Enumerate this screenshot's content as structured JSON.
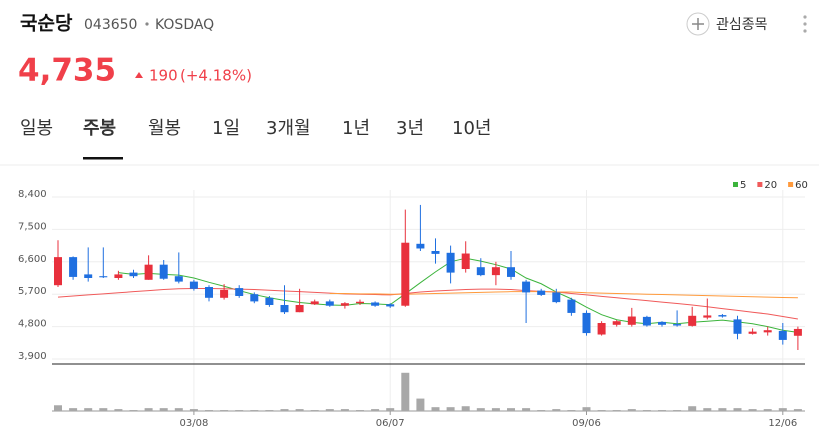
{
  "header": {
    "name": "국순당",
    "code": "043650",
    "market": "KOSDAQ",
    "watch_label": "관심종목",
    "price": "4,735",
    "change": "190",
    "change_pct": "(+4.18%)"
  },
  "tabs": [
    "일봉",
    "주봉",
    "월봉",
    "1일",
    "3개월",
    "1년",
    "3년",
    "10년"
  ],
  "selected_tab": 1,
  "chart_data": {
    "type": "candlestick",
    "categories": [
      null,
      null,
      null,
      null,
      null,
      null,
      null,
      null,
      null,
      "03/08",
      null,
      null,
      null,
      null,
      null,
      null,
      null,
      null,
      null,
      null,
      null,
      null,
      "06/07",
      null,
      null,
      null,
      null,
      null,
      null,
      null,
      null,
      null,
      null,
      null,
      null,
      "09/06",
      null,
      null,
      null,
      null,
      null,
      null,
      null,
      null,
      null,
      null,
      null,
      null,
      "12/06",
      null
    ],
    "open": [
      5950,
      6730,
      6250,
      6200,
      6150,
      6300,
      6100,
      6520,
      6200,
      6050,
      5900,
      5600,
      5870,
      5700,
      5600,
      5400,
      5200,
      5420,
      5500,
      5380,
      5450,
      5470,
      5420,
      5380,
      7100,
      6900,
      6850,
      6400,
      6450,
      6230,
      6450,
      6050,
      5800,
      5750,
      5550,
      5180,
      4580,
      4850,
      4850,
      5070,
      4930,
      4870,
      4820,
      5050,
      5120,
      5000,
      4600,
      4640,
      4680,
      4545
    ],
    "high": [
      7200,
      6750,
      7000,
      7000,
      6350,
      6380,
      6780,
      6650,
      6860,
      6100,
      5950,
      5980,
      5950,
      5750,
      5650,
      5950,
      5850,
      5550,
      5550,
      5480,
      5550,
      5500,
      5450,
      8050,
      8180,
      7250,
      7050,
      7170,
      6700,
      6600,
      6900,
      6100,
      5850,
      5850,
      5600,
      5250,
      4950,
      4980,
      5320,
      5100,
      4950,
      5250,
      5350,
      5580,
      5150,
      5100,
      4750,
      4800,
      4900,
      4800
    ],
    "low": [
      5900,
      6100,
      6050,
      6150,
      6100,
      6150,
      6100,
      6100,
      6000,
      5800,
      5500,
      5550,
      5600,
      5450,
      5350,
      5150,
      5200,
      5400,
      5350,
      5300,
      5400,
      5350,
      5320,
      5350,
      6900,
      6550,
      6000,
      6300,
      6200,
      5950,
      6100,
      4900,
      5650,
      5450,
      5100,
      4550,
      4550,
      4800,
      4800,
      4800,
      4800,
      4800,
      4800,
      5000,
      5050,
      4450,
      4580,
      4550,
      4300,
      4150
    ],
    "close": [
      6730,
      6180,
      6150,
      6170,
      6250,
      6200,
      6520,
      6130,
      6050,
      5850,
      5600,
      5820,
      5650,
      5500,
      5400,
      5200,
      5400,
      5500,
      5380,
      5450,
      5490,
      5380,
      5360,
      7130,
      6970,
      6820,
      6300,
      6830,
      6230,
      6450,
      6180,
      5750,
      5680,
      5480,
      5180,
      4620,
      4900,
      4950,
      5080,
      4830,
      4850,
      4830,
      5100,
      5110,
      5080,
      4600,
      4660,
      4700,
      4430,
      4735
    ],
    "up_color": "#e8303c",
    "down_color": "#1f6fe0",
    "moving_averages": [
      {
        "name": "5",
        "color": "#3cb43c",
        "values": [
          null,
          null,
          null,
          null,
          6300,
          6250,
          6280,
          6250,
          6230,
          6150,
          6030,
          5920,
          5800,
          5690,
          5600,
          5530,
          5470,
          5430,
          5400,
          5390,
          5440,
          5430,
          5410,
          5710,
          6020,
          6320,
          6600,
          6700,
          6620,
          6520,
          6400,
          6150,
          5990,
          5760,
          5570,
          5340,
          5130,
          4990,
          4920,
          4880,
          4920,
          4880,
          4920,
          4950,
          4980,
          4930,
          4880,
          4800,
          4700,
          4640
        ]
      },
      {
        "name": "20",
        "color": "#f05a5a",
        "values": [
          5620,
          5650,
          5680,
          5710,
          5740,
          5770,
          5800,
          5830,
          5850,
          5860,
          5860,
          5850,
          5840,
          5830,
          5810,
          5790,
          5770,
          5750,
          5730,
          5710,
          5700,
          5690,
          5680,
          5720,
          5760,
          5790,
          5810,
          5830,
          5840,
          5840,
          5830,
          5800,
          5780,
          5760,
          5720,
          5680,
          5640,
          5600,
          5560,
          5520,
          5480,
          5440,
          5400,
          5350,
          5300,
          5250,
          5200,
          5150,
          5080,
          5010
        ]
      },
      {
        "name": "60",
        "color": "#ff9a3c",
        "values": [
          null,
          null,
          null,
          null,
          null,
          null,
          null,
          null,
          null,
          null,
          null,
          null,
          null,
          null,
          null,
          null,
          null,
          null,
          5720,
          5720,
          5710,
          5710,
          5700,
          5700,
          5710,
          5720,
          5730,
          5740,
          5750,
          5760,
          5770,
          5770,
          5770,
          5760,
          5760,
          5740,
          5730,
          5720,
          5710,
          5700,
          5690,
          5680,
          5670,
          5660,
          5650,
          5640,
          5630,
          5620,
          5610,
          5600
        ]
      }
    ],
    "volume": [
      6,
      3,
      3,
      3,
      2,
      1,
      3,
      3,
      3,
      2,
      1,
      1,
      1,
      1,
      1,
      2,
      2,
      1,
      2,
      2,
      1,
      2,
      3,
      40,
      13,
      4,
      4,
      5,
      3,
      3,
      3,
      3,
      1,
      2,
      1,
      4,
      1,
      1,
      2,
      1,
      1,
      1,
      5,
      3,
      3,
      3,
      2,
      2,
      3,
      2
    ],
    "volume_lim": [
      0,
      45
    ],
    "volume_color": "#a8a8a8",
    "ylim": [
      3900,
      8400
    ],
    "yticks": [
      {
        "value": 3900,
        "label": "3,900"
      },
      {
        "value": 4800,
        "label": "4,800"
      },
      {
        "value": 5700,
        "label": "5,700"
      },
      {
        "value": 6600,
        "label": "6,600"
      },
      {
        "value": 7500,
        "label": "7,500"
      },
      {
        "value": 8400,
        "label": "8,400"
      }
    ],
    "grid": true
  }
}
